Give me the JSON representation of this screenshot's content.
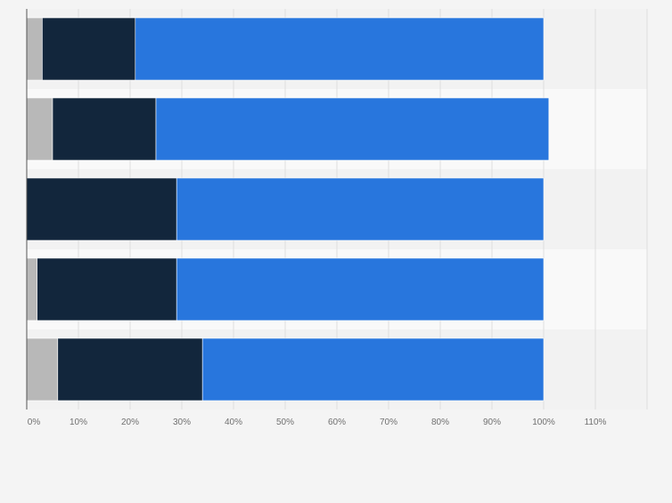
{
  "chart_data": {
    "type": "bar",
    "orientation": "horizontal",
    "stacked": true,
    "categories": [
      "",
      "",
      "",
      "",
      ""
    ],
    "series": [
      {
        "color": "#b8b8b8",
        "values": [
          3,
          5,
          0,
          2,
          6
        ]
      },
      {
        "color": "#12263c",
        "values": [
          18,
          20,
          29,
          27,
          28
        ]
      },
      {
        "color": "#2876dd",
        "values": [
          79,
          76,
          71,
          71,
          66
        ]
      }
    ],
    "xlim": [
      0,
      120
    ],
    "x_ticks": [
      {
        "value": 0,
        "label": "0%"
      },
      {
        "value": 10,
        "label": "10%"
      },
      {
        "value": 20,
        "label": "20%"
      },
      {
        "value": 30,
        "label": "30%"
      },
      {
        "value": 40,
        "label": "40%"
      },
      {
        "value": 50,
        "label": "50%"
      },
      {
        "value": 60,
        "label": "60%"
      },
      {
        "value": 70,
        "label": "70%"
      },
      {
        "value": 80,
        "label": "80%"
      },
      {
        "value": 90,
        "label": "90%"
      },
      {
        "value": 100,
        "label": "100%"
      },
      {
        "value": 110,
        "label": "110%"
      }
    ],
    "title": "",
    "xlabel": "",
    "ylabel": "",
    "grid": true,
    "legend": "none",
    "colors": {
      "band_odd": "#f2f2f2",
      "band_even": "#f9f9f9",
      "grid": "#dedede",
      "axis": "#555555",
      "tick_text": "#707070"
    }
  }
}
